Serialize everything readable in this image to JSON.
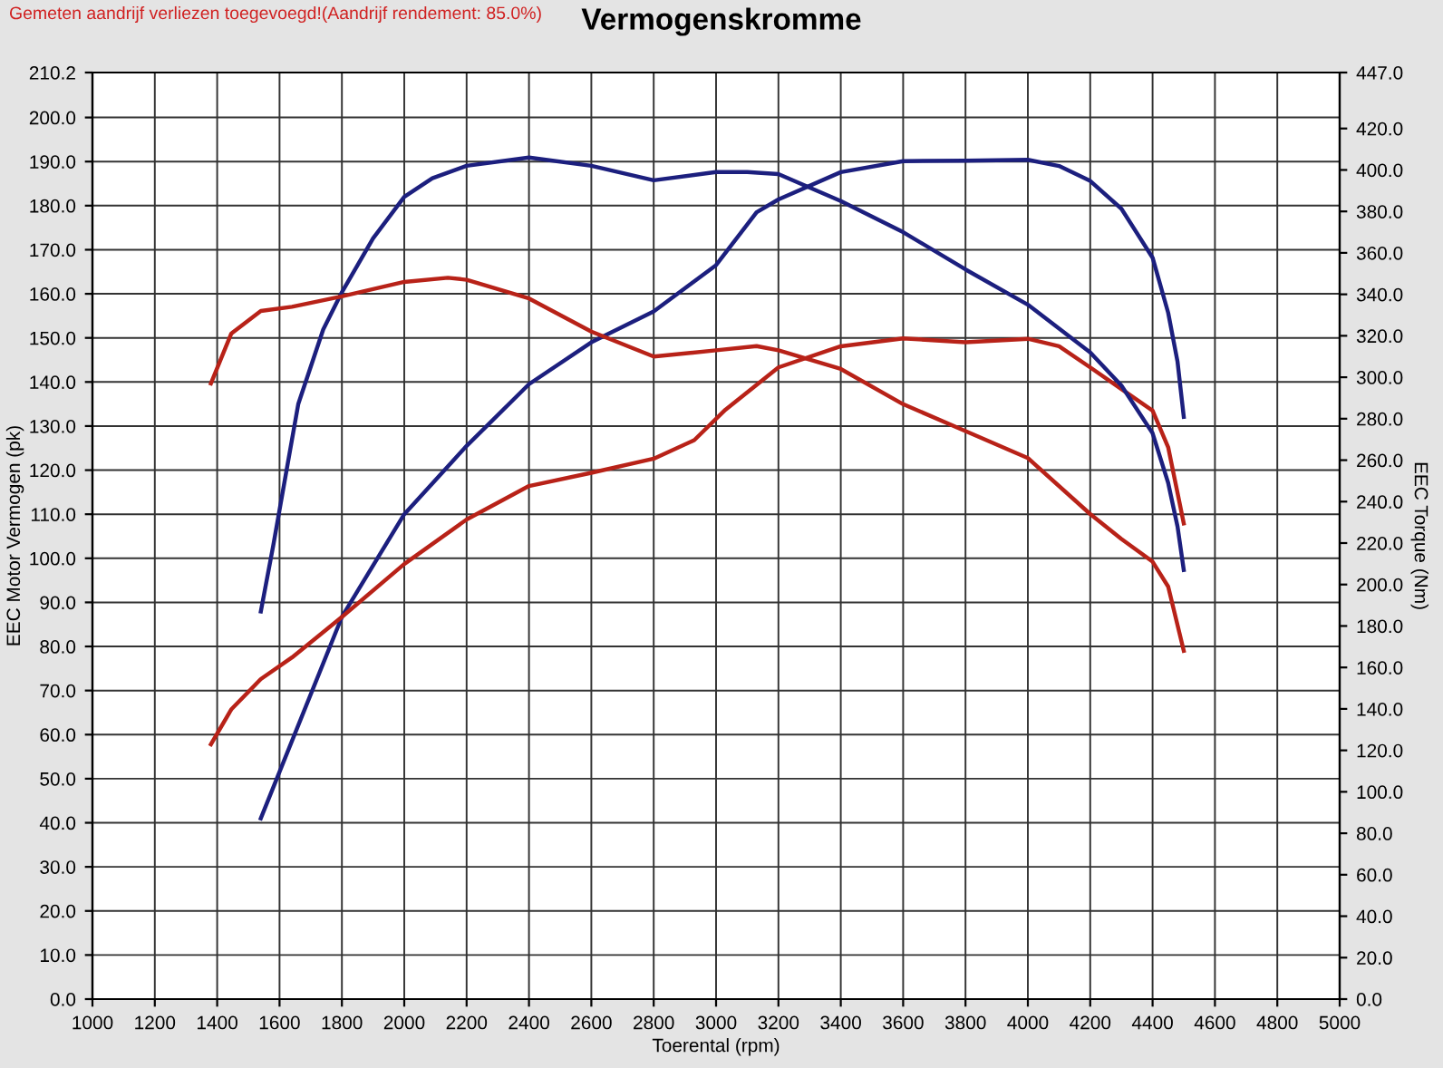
{
  "chart_data": {
    "type": "line",
    "title": "Vermogenskromme",
    "annotations": [
      "Gemeten aandrijf verliezen toegevoegd!(Aandrijf rendement: 85.0%)"
    ],
    "xlabel": "Toerental (rpm)",
    "ylabel": "EEC Motor Vermogen (pk)",
    "y2label": "EEC Torque (Nm)",
    "xlim": [
      1000,
      5000
    ],
    "xticks": [
      1000,
      1200,
      1400,
      1600,
      1800,
      2000,
      2200,
      2400,
      2600,
      2800,
      3000,
      3200,
      3400,
      3600,
      3800,
      4000,
      4200,
      4400,
      4600,
      4800,
      5000
    ],
    "ylim": [
      0,
      210.2
    ],
    "yticks": [
      {
        "value": 0,
        "label": "0.0"
      },
      {
        "value": 10,
        "label": "10.0"
      },
      {
        "value": 20,
        "label": "20.0"
      },
      {
        "value": 30,
        "label": "30.0"
      },
      {
        "value": 40,
        "label": "40.0"
      },
      {
        "value": 50,
        "label": "50.0"
      },
      {
        "value": 60,
        "label": "60.0"
      },
      {
        "value": 70,
        "label": "70.0"
      },
      {
        "value": 80,
        "label": "80.0"
      },
      {
        "value": 90,
        "label": "90.0"
      },
      {
        "value": 100,
        "label": "100.0"
      },
      {
        "value": 110,
        "label": "110.0"
      },
      {
        "value": 120,
        "label": "120.0"
      },
      {
        "value": 130,
        "label": "130.0"
      },
      {
        "value": 140,
        "label": "140.0"
      },
      {
        "value": 150,
        "label": "150.0"
      },
      {
        "value": 160,
        "label": "160.0"
      },
      {
        "value": 170,
        "label": "170.0"
      },
      {
        "value": 180,
        "label": "180.0"
      },
      {
        "value": 190,
        "label": "190.0"
      },
      {
        "value": 200,
        "label": "200.0"
      },
      {
        "value": 210.2,
        "label": "210.2"
      }
    ],
    "y2lim": [
      0,
      447
    ],
    "y2ticks": [
      {
        "value": 0,
        "label": "0.0"
      },
      {
        "value": 20,
        "label": "20.0"
      },
      {
        "value": 40,
        "label": "40.0"
      },
      {
        "value": 60,
        "label": "60.0"
      },
      {
        "value": 80,
        "label": "80.0"
      },
      {
        "value": 100,
        "label": "100.0"
      },
      {
        "value": 120,
        "label": "120.0"
      },
      {
        "value": 140,
        "label": "140.0"
      },
      {
        "value": 160,
        "label": "160.0"
      },
      {
        "value": 180,
        "label": "180.0"
      },
      {
        "value": 200,
        "label": "200.0"
      },
      {
        "value": 220,
        "label": "220.0"
      },
      {
        "value": 240,
        "label": "240.0"
      },
      {
        "value": 260,
        "label": "260.0"
      },
      {
        "value": 280,
        "label": "280.0"
      },
      {
        "value": 300,
        "label": "300.0"
      },
      {
        "value": 320,
        "label": "320.0"
      },
      {
        "value": 340,
        "label": "340.0"
      },
      {
        "value": 360,
        "label": "360.0"
      },
      {
        "value": 380,
        "label": "380.0"
      },
      {
        "value": 400,
        "label": "400.0"
      },
      {
        "value": 420,
        "label": "420.0"
      },
      {
        "value": 447,
        "label": "447.0"
      }
    ],
    "grid": true,
    "legend": false,
    "marker": "none",
    "line_style": "solid",
    "series": [
      {
        "color": "#1c1f7e",
        "x": [
          1540,
          1800,
          2000,
          2200,
          2400,
          2600,
          2800,
          3000,
          3130,
          3200,
          3400,
          3600,
          3800,
          4000,
          4100,
          4200,
          4300,
          4400,
          4450,
          4480,
          4500
        ],
        "values": [
          41,
          86.7,
          110,
          125.5,
          139.5,
          149,
          156,
          166.5,
          178.5,
          181.4,
          187.6,
          190.1,
          190.2,
          190.4,
          189,
          185.6,
          179.3,
          168.2,
          155.7,
          144.6,
          132.1
        ]
      },
      {
        "color": "#b82218",
        "x": [
          1380,
          1445,
          1540,
          1640,
          1800,
          2000,
          2200,
          2400,
          2600,
          2800,
          2930,
          3030,
          3200,
          3400,
          3600,
          3800,
          4000,
          4100,
          4200,
          4300,
          4400,
          4450,
          4500
        ],
        "values": [
          57.8,
          65.7,
          72.6,
          77.5,
          86.7,
          98.7,
          108.8,
          116.4,
          119.4,
          122.6,
          126.8,
          133.7,
          143.3,
          148.1,
          149.9,
          149,
          149.8,
          148.1,
          143.3,
          138.4,
          133.5,
          125.2,
          107.9
        ]
      },
      {
        "color": "#1c1f7e",
        "axis": "y2",
        "x": [
          1540,
          1580,
          1660,
          1740,
          1800,
          1900,
          2000,
          2090,
          2200,
          2400,
          2600,
          2800,
          3000,
          3100,
          3200,
          3400,
          3600,
          3800,
          4000,
          4200,
          4300,
          4400,
          4450,
          4480,
          4500
        ],
        "values": [
          187,
          219,
          287,
          323,
          341,
          367,
          387,
          396,
          402,
          406,
          402,
          395,
          399,
          399,
          398,
          385,
          370,
          352,
          335,
          312,
          296,
          273,
          249,
          228,
          207
        ]
      },
      {
        "color": "#b82218",
        "axis": "y2",
        "x": [
          1380,
          1445,
          1540,
          1640,
          1800,
          2000,
          2140,
          2200,
          2400,
          2600,
          2800,
          3000,
          3130,
          3200,
          3400,
          3600,
          3800,
          4000,
          4200,
          4300,
          4400,
          4450,
          4500
        ],
        "values": [
          297,
          321,
          332,
          334,
          339,
          346,
          348,
          347,
          338,
          322,
          310,
          313,
          315,
          313,
          304,
          287,
          274,
          261,
          234,
          222,
          211,
          199,
          168
        ]
      }
    ]
  }
}
